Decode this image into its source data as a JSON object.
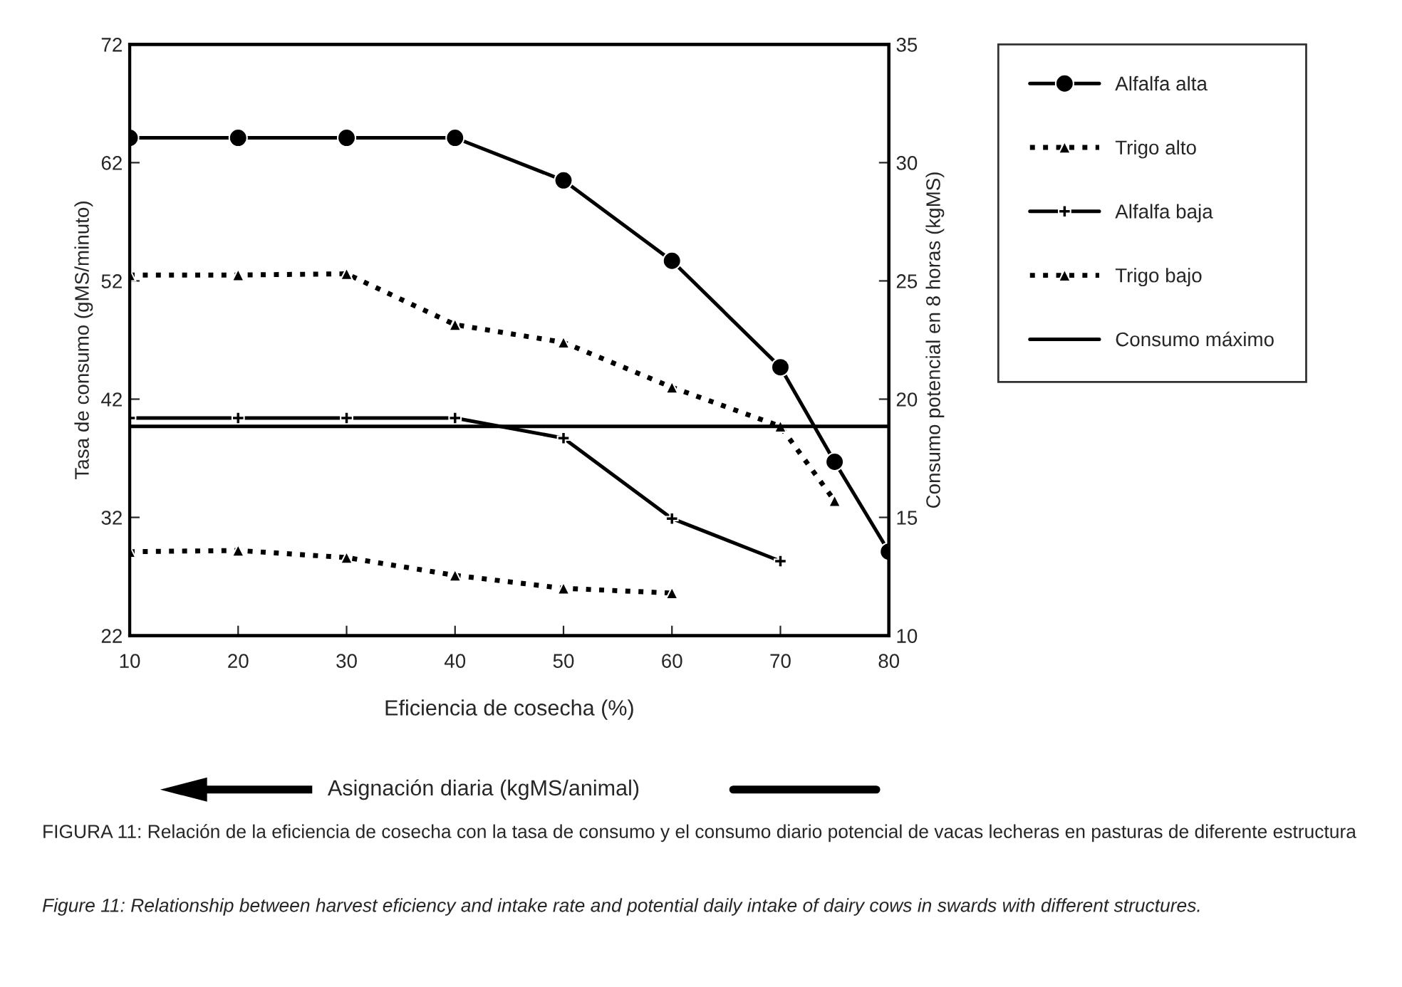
{
  "chart_data": {
    "type": "line",
    "xlabel": "Eficiencia de cosecha (%)",
    "ylabel": "Tasa de consumo (gMS/minuto)",
    "y2label": "Consumo potencial en 8 horas (kgMS)",
    "xlim": [
      10,
      80
    ],
    "xticks": [
      10,
      20,
      30,
      40,
      50,
      60,
      70,
      80
    ],
    "ylim": [
      22,
      72
    ],
    "yticks": [
      22,
      32,
      42,
      52,
      62,
      72
    ],
    "y2lim": [
      10,
      35
    ],
    "y2ticks": [
      10,
      15,
      20,
      25,
      30,
      35
    ],
    "grid": false,
    "legend": "right",
    "series": [
      {
        "name": "Alfalfa alta",
        "color": "#000000",
        "marker": "circle",
        "line_style": "solid",
        "x": [
          10,
          20,
          30,
          40,
          50,
          60,
          70,
          75,
          80
        ],
        "values": [
          64.1,
          64.1,
          64.1,
          64.1,
          60.5,
          53.7,
          44.7,
          36.7,
          29.1
        ]
      },
      {
        "name": "Trigo alto",
        "color": "#000000",
        "marker": "triangle",
        "line_style": "dotted",
        "x": [
          10,
          20,
          30,
          40,
          50,
          60,
          70,
          75
        ],
        "values": [
          52.5,
          52.5,
          52.6,
          48.3,
          46.8,
          43.0,
          39.7,
          33.4
        ]
      },
      {
        "name": "Alfalfa baja",
        "color": "#000000",
        "marker": "cross",
        "line_style": "solid",
        "x": [
          10,
          20,
          30,
          40,
          50,
          60,
          70
        ],
        "values": [
          40.4,
          40.4,
          40.4,
          40.4,
          38.7,
          31.9,
          28.3
        ]
      },
      {
        "name": "Trigo bajo",
        "color": "#000000",
        "marker": "triangle",
        "line_style": "dotted",
        "x": [
          10,
          20,
          30,
          40,
          50,
          60
        ],
        "values": [
          29.1,
          29.2,
          28.6,
          27.1,
          26.0,
          25.6
        ]
      },
      {
        "name": "Consumo máximo",
        "color": "#000000",
        "marker": "none",
        "line_style": "solid",
        "x": [
          10,
          80
        ],
        "values": [
          39.7,
          39.7
        ]
      }
    ],
    "annotations": [
      "Asignación diaria (kgMS/animal)",
      "FIGURA 11: Relación de la eficiencia de cosecha con la tasa de consumo y el consumo diario potencial de vacas lecheras en pasturas de diferente estructura",
      "Figure 11: Relationship between harvest eficiency and intake rate and potential daily intake of dairy cows in swards with different structures."
    ]
  }
}
